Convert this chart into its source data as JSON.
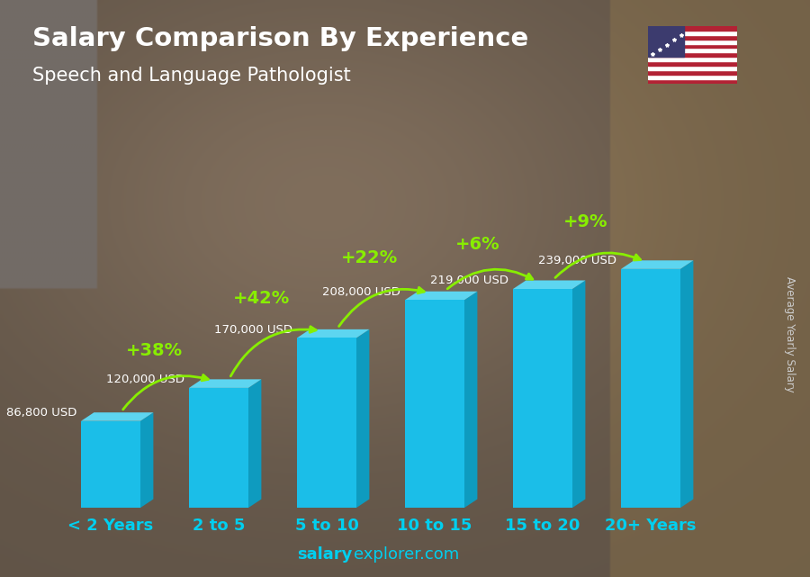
{
  "title_line1": "Salary Comparison By Experience",
  "title_line2": "Speech and Language Pathologist",
  "categories": [
    "< 2 Years",
    "2 to 5",
    "5 to 10",
    "10 to 15",
    "15 to 20",
    "20+ Years"
  ],
  "values": [
    86800,
    120000,
    170000,
    208000,
    219000,
    239000
  ],
  "value_labels": [
    "86,800 USD",
    "120,000 USD",
    "170,000 USD",
    "208,000 USD",
    "219,000 USD",
    "239,000 USD"
  ],
  "pct_changes": [
    "+38%",
    "+42%",
    "+22%",
    "+6%",
    "+9%"
  ],
  "bar_color_main": "#1BBEE8",
  "bar_color_side": "#0E9BBF",
  "bar_color_top": "#5DD5F0",
  "pct_color": "#88EE00",
  "salary_label_color": "#FFFFFF",
  "bg_color_top": "#3a3a3a",
  "bg_color_bot": "#2a2a2a",
  "title_color": "#FFFFFF",
  "subtitle_color": "#FFFFFF",
  "tick_color": "#00CFEF",
  "watermark_bold": "salary",
  "watermark_normal": "explorer.com",
  "right_label": "Average Yearly Salary",
  "figsize": [
    9.0,
    6.41
  ]
}
